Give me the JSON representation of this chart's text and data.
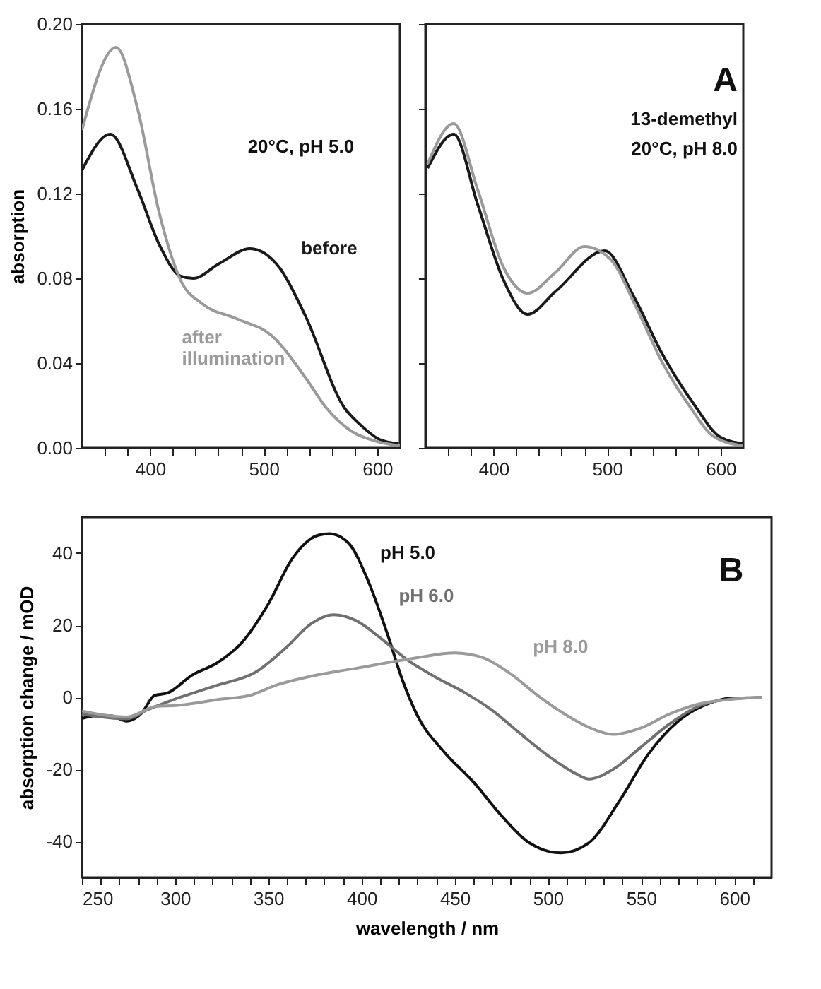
{
  "chart_data": [
    {
      "type": "line",
      "ylabel": "absorption",
      "xlim": [
        340,
        620
      ],
      "ylim": [
        0,
        0.2
      ],
      "xticks": [
        {
          "value": 360,
          "label": null
        },
        {
          "value": 380,
          "label": null
        },
        400,
        {
          "value": 420,
          "label": null
        },
        {
          "value": 440,
          "label": null
        },
        {
          "value": 460,
          "label": null
        },
        {
          "value": 480,
          "label": null
        },
        500,
        {
          "value": 520,
          "label": null
        },
        {
          "value": 540,
          "label": null
        },
        {
          "value": 560,
          "label": null
        },
        {
          "value": 580,
          "label": null
        },
        600
      ],
      "yticks": [
        {
          "value": 0,
          "label": "0.00"
        },
        {
          "value": 0.04,
          "label": "0.04"
        },
        {
          "value": 0.08,
          "label": "0.08"
        },
        {
          "value": 0.12,
          "label": "0.12"
        },
        {
          "value": 0.16,
          "label": "0.16"
        },
        {
          "value": 0.2,
          "label": "0.20"
        }
      ],
      "grid": false,
      "legend": false,
      "marker": "none",
      "line_style": "solid",
      "annotations": [
        "20°C, pH 5.0"
      ],
      "series": [
        {
          "name": "before",
          "color": "#1a1a1a",
          "x": [
            340,
            365,
            389,
            408,
            427,
            438,
            461,
            488,
            514,
            537,
            571,
            585,
            602,
            619
          ],
          "values": [
            0.131,
            0.148,
            0.122,
            0.096,
            0.081,
            0.08,
            0.087,
            0.094,
            0.085,
            0.062,
            0.019,
            0.011,
            0.004,
            0.002
          ]
        },
        {
          "name": "after illumination",
          "color": "#9a9a9a",
          "x": [
            340,
            370,
            389,
            408,
            427,
            446,
            476,
            507,
            537,
            555,
            577,
            600,
            620
          ],
          "values": [
            0.15,
            0.189,
            0.16,
            0.111,
            0.079,
            0.068,
            0.061,
            0.053,
            0.033,
            0.019,
            0.008,
            0.003,
            0.001
          ]
        }
      ]
    },
    {
      "type": "line",
      "xlim": [
        340,
        620
      ],
      "ylim": [
        0,
        0.2
      ],
      "tick_labels": "x",
      "xticks": [
        {
          "value": 360,
          "label": null
        },
        {
          "value": 380,
          "label": null
        },
        400,
        {
          "value": 420,
          "label": null
        },
        {
          "value": 440,
          "label": null
        },
        {
          "value": 460,
          "label": null
        },
        {
          "value": 480,
          "label": null
        },
        500,
        {
          "value": 520,
          "label": null
        },
        {
          "value": 540,
          "label": null
        },
        {
          "value": 560,
          "label": null
        },
        {
          "value": 580,
          "label": null
        },
        600
      ],
      "yticks": [
        0,
        0.04,
        0.08,
        0.12,
        0.16,
        0.2
      ],
      "grid": false,
      "legend": false,
      "marker": "none",
      "line_style": "solid",
      "annotations": [
        "A",
        "13-demethyl",
        "20°C, pH 8.0"
      ],
      "series": [
        {
          "color": "#1a1a1a",
          "x": [
            342,
            365,
            386,
            409,
            430,
            455,
            498,
            523,
            549,
            576,
            600,
            620
          ],
          "values": [
            0.132,
            0.148,
            0.115,
            0.079,
            0.063,
            0.074,
            0.093,
            0.072,
            0.044,
            0.021,
            0.005,
            0.002
          ]
        },
        {
          "color": "#9a9a9a",
          "x": [
            342,
            365,
            386,
            409,
            430,
            455,
            480,
            503,
            526,
            549,
            571,
            595,
            620
          ],
          "values": [
            0.134,
            0.153,
            0.122,
            0.085,
            0.073,
            0.083,
            0.095,
            0.089,
            0.066,
            0.04,
            0.021,
            0.005,
            0.001
          ]
        }
      ]
    },
    {
      "type": "line",
      "xlabel": "wavelength / nm",
      "ylabel": "absorption change / mOD",
      "xlim": [
        250,
        620
      ],
      "ylim": [
        -50,
        50
      ],
      "xticks": [
        250,
        {
          "value": 260,
          "label": null
        },
        {
          "value": 270,
          "label": null
        },
        {
          "value": 280,
          "label": null
        },
        {
          "value": 290,
          "label": null
        },
        300,
        {
          "value": 310,
          "label": null
        },
        {
          "value": 320,
          "label": null
        },
        {
          "value": 330,
          "label": null
        },
        {
          "value": 340,
          "label": null
        },
        350,
        {
          "value": 360,
          "label": null
        },
        {
          "value": 370,
          "label": null
        },
        {
          "value": 380,
          "label": null
        },
        {
          "value": 390,
          "label": null
        },
        400,
        {
          "value": 410,
          "label": null
        },
        {
          "value": 420,
          "label": null
        },
        {
          "value": 430,
          "label": null
        },
        {
          "value": 440,
          "label": null
        },
        450,
        {
          "value": 460,
          "label": null
        },
        {
          "value": 470,
          "label": null
        },
        {
          "value": 480,
          "label": null
        },
        {
          "value": 490,
          "label": null
        },
        500,
        {
          "value": 510,
          "label": null
        },
        {
          "value": 520,
          "label": null
        },
        {
          "value": 530,
          "label": null
        },
        {
          "value": 540,
          "label": null
        },
        550,
        {
          "value": 560,
          "label": null
        },
        {
          "value": 570,
          "label": null
        },
        {
          "value": 580,
          "label": null
        },
        {
          "value": 590,
          "label": null
        },
        600,
        {
          "value": 610,
          "label": null
        }
      ],
      "yticks": [
        -40,
        -20,
        0,
        20,
        40
      ],
      "grid": false,
      "legend": false,
      "marker": "none",
      "line_style": "solid",
      "annotations": [
        "B"
      ],
      "series": [
        {
          "name": "pH 5.0",
          "color": "#111111",
          "x": [
            250,
            258,
            266,
            274,
            282,
            289,
            296,
            309,
            323,
            336,
            350,
            363,
            377,
            383,
            393,
            403,
            414,
            422,
            430,
            444,
            460,
            476,
            490,
            507,
            522,
            538,
            554,
            570,
            587,
            600,
            615
          ],
          "values": [
            -5.9,
            -5.1,
            -5.2,
            -6.6,
            -4.4,
            0.5,
            1.2,
            6.1,
            9.7,
            15.3,
            25.9,
            38.6,
            45,
            45.4,
            42.8,
            33,
            17.4,
            4.7,
            -5.1,
            -15,
            -23.5,
            -33.4,
            -40.4,
            -43.2,
            -40.4,
            -29.1,
            -15.7,
            -6.6,
            -1.6,
            -0.2,
            -0.2
          ]
        },
        {
          "name": "pH 6.0",
          "color": "#707070",
          "x": [
            250,
            274,
            285,
            300,
            323,
            343,
            360,
            373,
            385,
            397,
            410,
            425,
            440,
            455,
            470,
            485,
            500,
            515,
            522,
            535,
            550,
            565,
            580,
            600,
            615
          ],
          "values": [
            -4.7,
            -6,
            -3.5,
            -0.5,
            3.4,
            6.9,
            14,
            20.4,
            22.9,
            21.3,
            16.5,
            10.2,
            5.5,
            1.4,
            -3.6,
            -10,
            -16.2,
            -21.2,
            -22.7,
            -20,
            -13.8,
            -7.5,
            -2.7,
            -0.4,
            0
          ]
        },
        {
          "name": "pH 8.0",
          "color": "#9a9a9a",
          "x": [
            250,
            274,
            290,
            300,
            325,
            340,
            355,
            370,
            385,
            400,
            415,
            430,
            450,
            465,
            480,
            495,
            510,
            525,
            535,
            550,
            565,
            580,
            600,
            615
          ],
          "values": [
            -3.8,
            -5.5,
            -2.5,
            -2.3,
            -0.5,
            0.5,
            3.5,
            5.5,
            7,
            8.3,
            9.7,
            11,
            12.3,
            11,
            6.5,
            0.3,
            -5,
            -9,
            -10.3,
            -8.5,
            -4.7,
            -2,
            -0.5,
            0
          ]
        }
      ]
    }
  ]
}
